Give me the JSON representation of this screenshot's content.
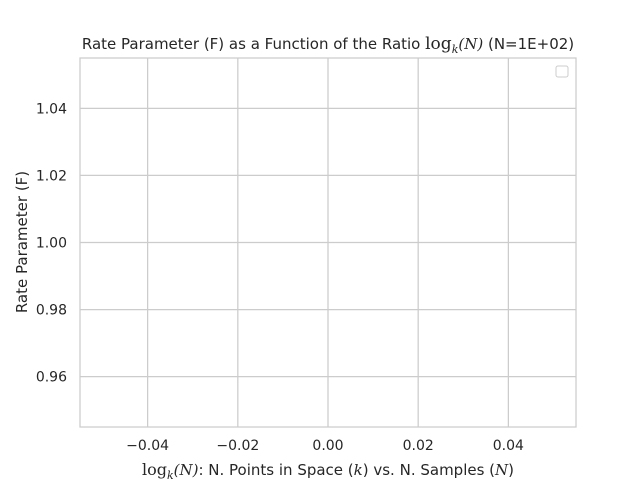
{
  "chart_data": {
    "type": "line",
    "title": {
      "prefix": "Rate Parameter (F) as a Function of the Ratio ",
      "log": "log",
      "sub": "k",
      "arg": "(N)",
      "suffix": " (N=1E+02)"
    },
    "xlabel": {
      "log": "log",
      "sub": "k",
      "arg": "(N)",
      "t1": ": N. Points in Space (",
      "k": "k",
      "t2": ") vs. N. Samples (",
      "n": "N",
      "t3": ")"
    },
    "ylabel": "Rate Parameter (F)",
    "xlim": [
      -0.055,
      0.055
    ],
    "ylim": [
      0.945,
      1.055
    ],
    "xticks": [
      -0.04,
      -0.02,
      0.0,
      0.02,
      0.04
    ],
    "xtick_labels": [
      "−0.04",
      "−0.02",
      "0.00",
      "0.02",
      "0.04"
    ],
    "yticks": [
      0.96,
      0.98,
      1.0,
      1.02,
      1.04
    ],
    "ytick_labels": [
      "0.96",
      "0.98",
      "1.00",
      "1.02",
      "1.04"
    ],
    "grid": true,
    "legend": {
      "placement": "top-right",
      "entries": []
    },
    "series": [],
    "colors": {
      "grid": "#cccccc",
      "axes": "#cccccc",
      "text": "#262626"
    }
  }
}
